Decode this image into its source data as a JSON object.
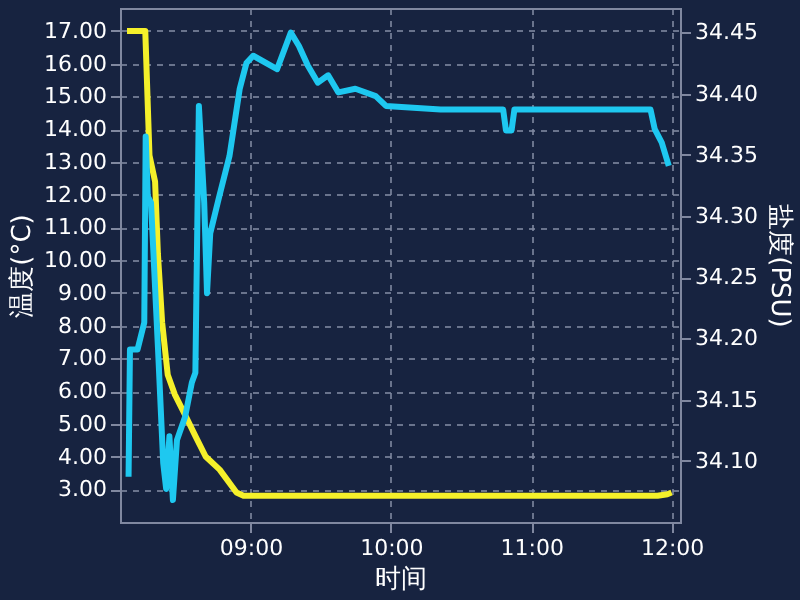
{
  "chart_data": {
    "type": "line",
    "xlabel": "时间",
    "ylabel": "温度(°C)",
    "y2label": "盐度(PSU)",
    "xlim": [
      8.07,
      12.06
    ],
    "xticks": [
      {
        "value": 9,
        "label": "09:00"
      },
      {
        "value": 10,
        "label": "10:00"
      },
      {
        "value": 11,
        "label": "11:00"
      },
      {
        "value": 12,
        "label": "12:00"
      }
    ],
    "ylim": [
      2.0,
      17.7
    ],
    "yticks": [
      {
        "value": 3,
        "label": "3.00"
      },
      {
        "value": 4,
        "label": "4.00"
      },
      {
        "value": 5,
        "label": "5.00"
      },
      {
        "value": 6,
        "label": "6.00"
      },
      {
        "value": 7,
        "label": "7.00"
      },
      {
        "value": 8,
        "label": "8.00"
      },
      {
        "value": 9,
        "label": "9.00"
      },
      {
        "value": 10,
        "label": "10.00"
      },
      {
        "value": 11,
        "label": "11.00"
      },
      {
        "value": 12,
        "label": "12.00"
      },
      {
        "value": 13,
        "label": "13.00"
      },
      {
        "value": 14,
        "label": "14.00"
      },
      {
        "value": 15,
        "label": "15.00"
      },
      {
        "value": 16,
        "label": "16.00"
      },
      {
        "value": 17,
        "label": "17.00"
      }
    ],
    "y2lim": [
      34.05,
      34.47
    ],
    "y2ticks": [
      {
        "value": 34.1,
        "label": "34.10"
      },
      {
        "value": 34.15,
        "label": "34.15"
      },
      {
        "value": 34.2,
        "label": "34.20"
      },
      {
        "value": 34.25,
        "label": "34.25"
      },
      {
        "value": 34.3,
        "label": "34.30"
      },
      {
        "value": 34.35,
        "label": "34.35"
      },
      {
        "value": 34.4,
        "label": "34.40"
      },
      {
        "value": 34.45,
        "label": "34.45"
      }
    ],
    "grid": true,
    "marker": "none",
    "line_style": "solid",
    "series": [
      {
        "color": "#1ec8f0",
        "axis": "y2",
        "x": [
          8.131,
          8.141,
          8.195,
          8.243,
          8.253,
          8.268,
          8.291,
          8.341,
          8.378,
          8.399,
          8.422,
          8.447,
          8.476,
          8.534,
          8.582,
          8.607,
          8.632,
          8.67,
          8.69,
          8.713,
          8.777,
          8.85,
          8.923,
          8.971,
          9.019,
          9.189,
          9.287,
          9.345,
          9.408,
          9.48,
          9.553,
          9.626,
          9.747,
          9.892,
          9.965,
          10.354,
          10.8,
          10.82,
          10.86,
          10.88,
          11.52,
          11.85,
          11.88,
          11.93,
          11.98
        ],
        "values": [
          34.087,
          34.191,
          34.191,
          34.213,
          34.365,
          34.316,
          34.311,
          34.191,
          34.098,
          34.077,
          34.12,
          34.068,
          34.117,
          34.136,
          34.164,
          34.172,
          34.39,
          34.311,
          34.237,
          34.286,
          34.316,
          34.349,
          34.404,
          34.425,
          34.431,
          34.42,
          34.45,
          34.439,
          34.423,
          34.409,
          34.415,
          34.401,
          34.404,
          34.398,
          34.39,
          34.387,
          34.387,
          34.37,
          34.37,
          34.387,
          34.387,
          34.387,
          34.371,
          34.36,
          34.341
        ]
      },
      {
        "color": "#f5f02a",
        "x": [
          8.12,
          8.25,
          8.28,
          8.32,
          8.34,
          8.37,
          8.41,
          8.46,
          8.53,
          8.61,
          8.68,
          8.78,
          8.9,
          8.95,
          10.5,
          11.9,
          11.97,
          12.0
        ],
        "values": [
          17.0,
          17.0,
          13.2,
          12.4,
          10.2,
          8.1,
          6.5,
          5.9,
          5.3,
          4.6,
          4.0,
          3.6,
          2.9,
          2.8,
          2.8,
          2.8,
          2.85,
          2.9
        ]
      }
    ]
  }
}
